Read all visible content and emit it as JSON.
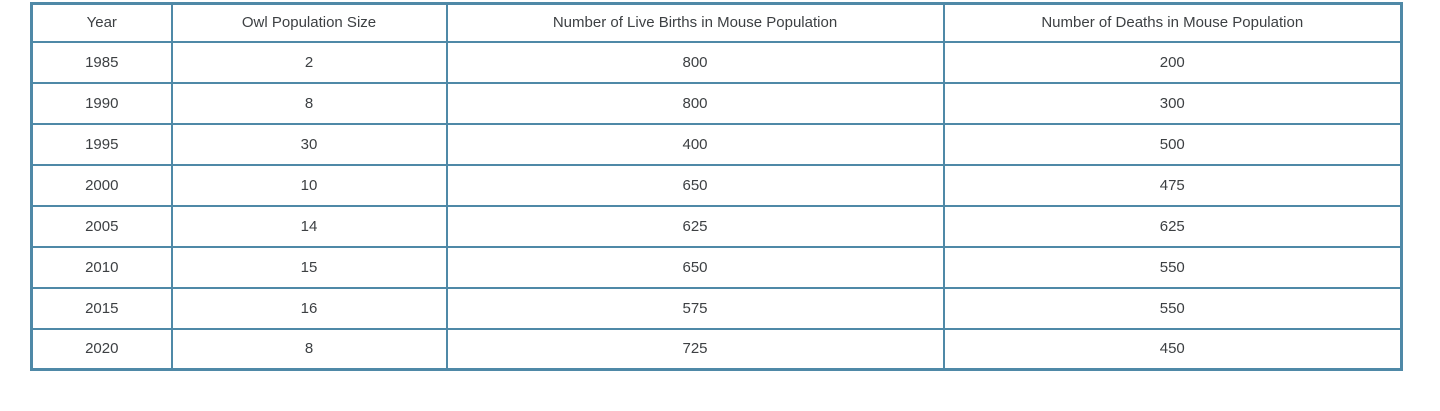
{
  "chart_data": {
    "type": "table",
    "columns": [
      "Year",
      "Owl Population Size",
      "Number of Live Births in Mouse Population",
      "Number of Deaths in Mouse Population"
    ],
    "rows": [
      [
        1985,
        2,
        800,
        200
      ],
      [
        1990,
        8,
        800,
        300
      ],
      [
        1995,
        30,
        400,
        500
      ],
      [
        2000,
        10,
        650,
        475
      ],
      [
        2005,
        14,
        625,
        625
      ],
      [
        2010,
        15,
        650,
        550
      ],
      [
        2015,
        16,
        575,
        550
      ],
      [
        2020,
        8,
        725,
        450
      ]
    ]
  },
  "colors": {
    "border": "#4f89a7",
    "text": "#3d4043",
    "background": "#ffffff"
  }
}
